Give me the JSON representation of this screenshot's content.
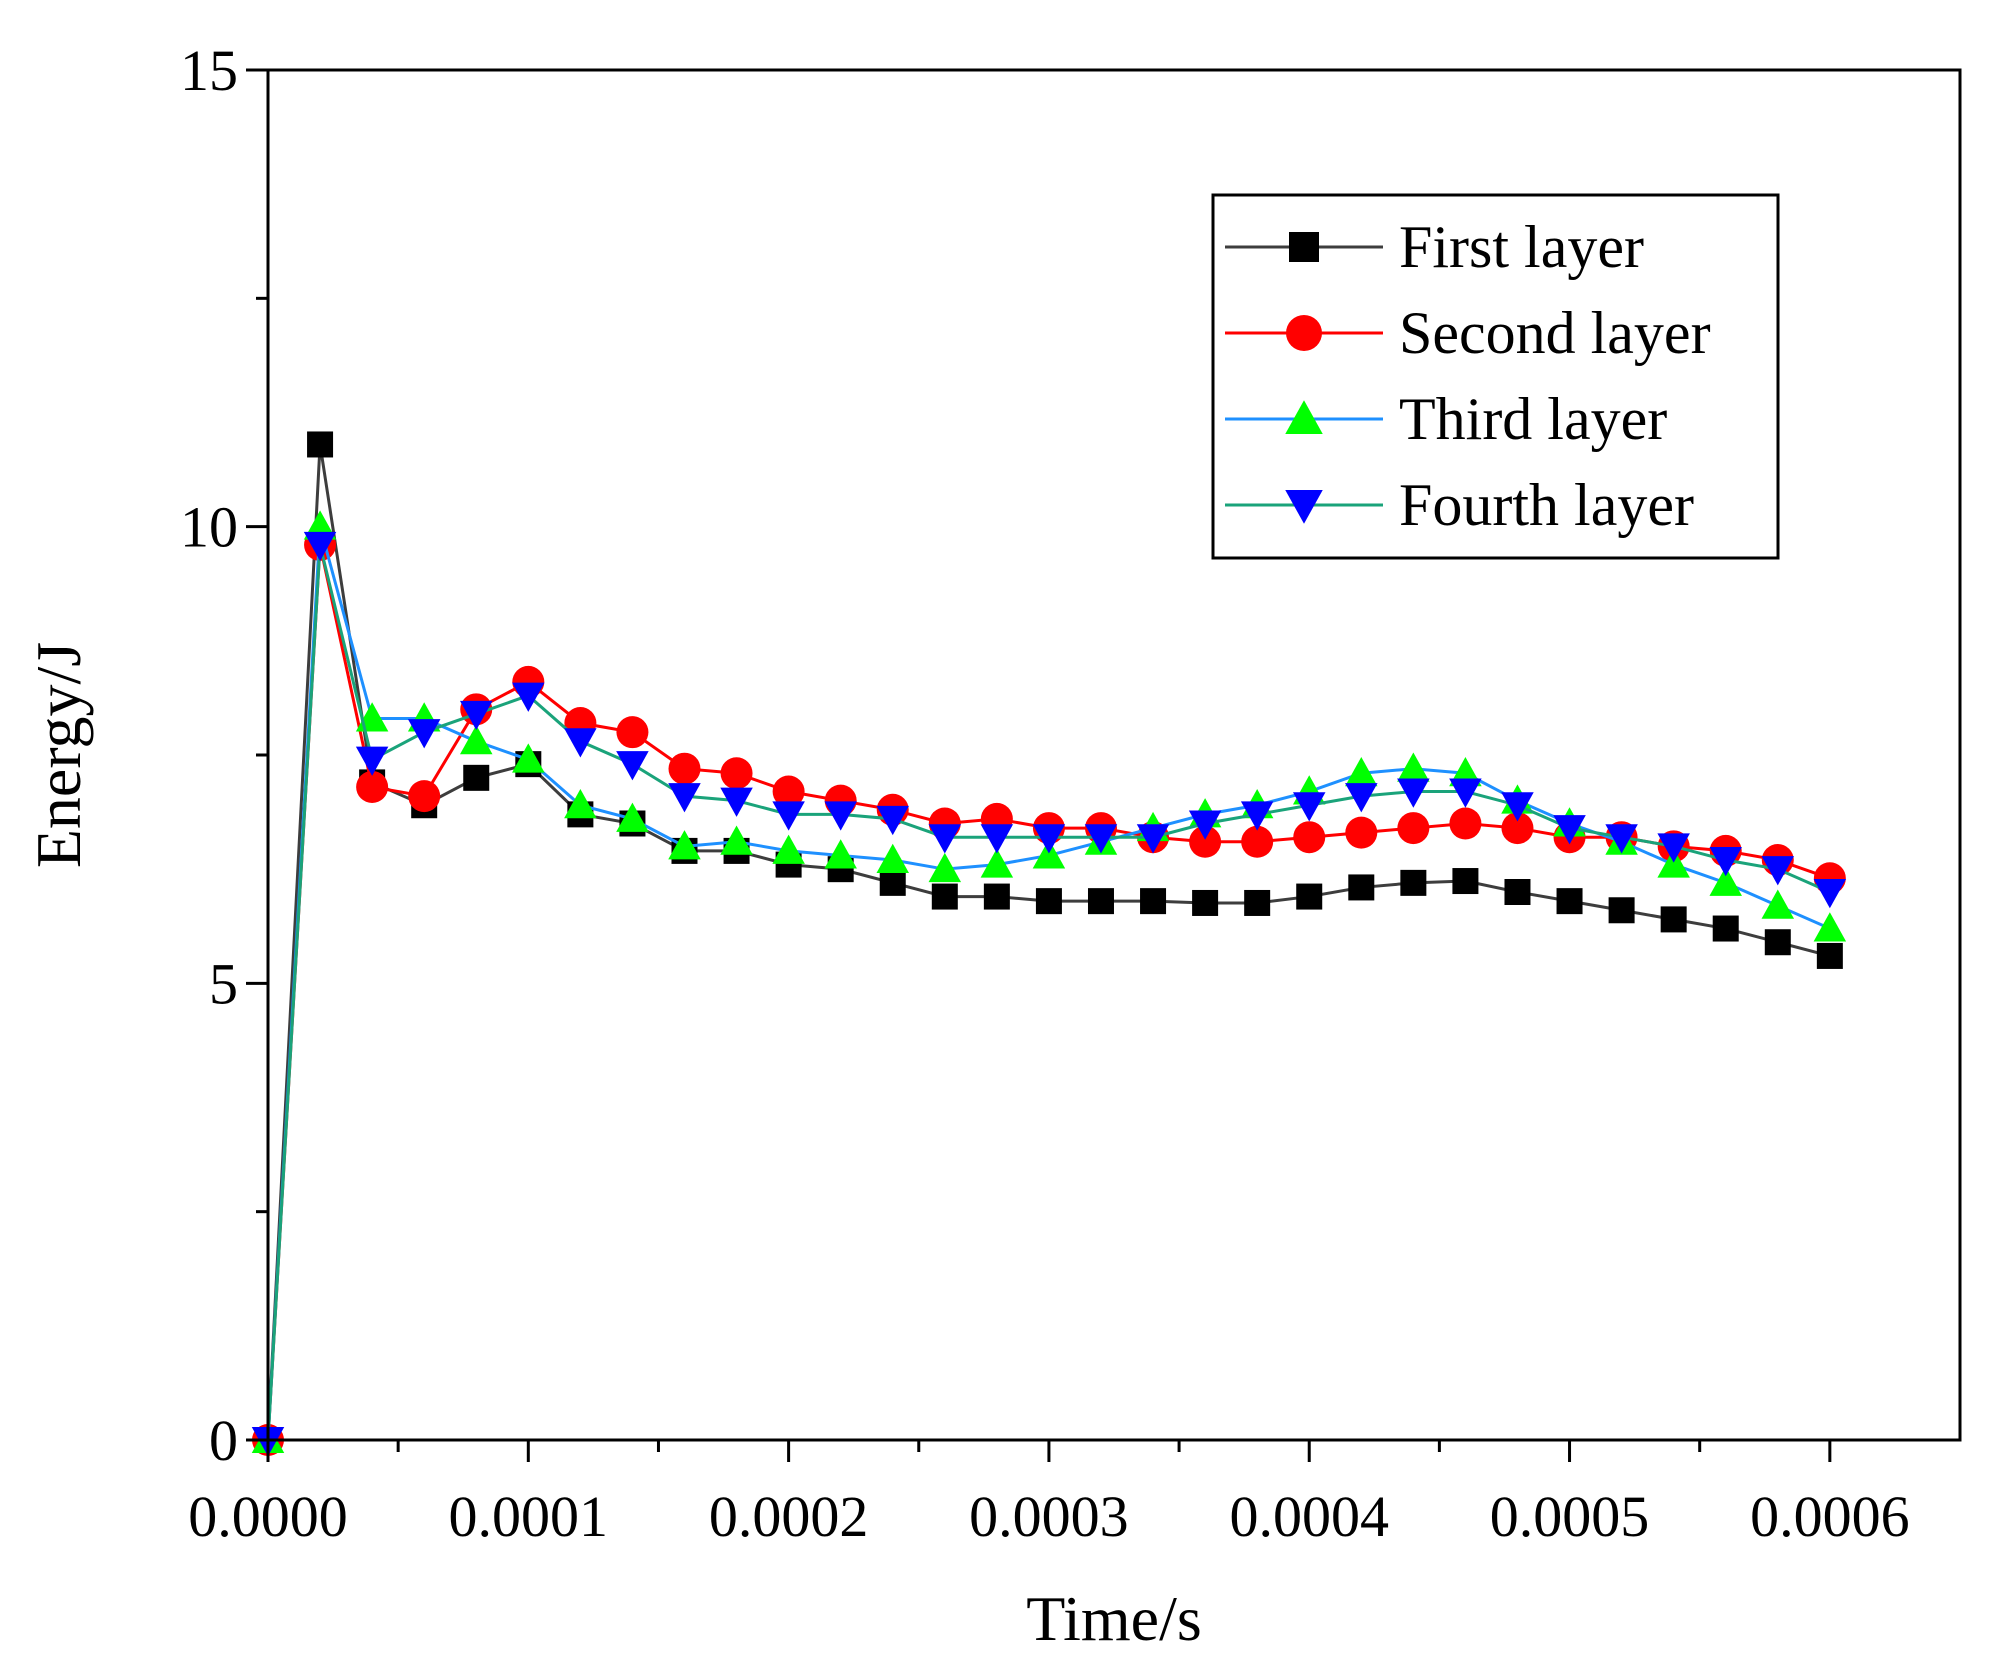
{
  "chart_data": {
    "type": "line",
    "title": "",
    "xlabel": "Time/s",
    "ylabel": "Energy/J",
    "xlim": [
      0,
      0.00065
    ],
    "ylim": [
      0,
      15
    ],
    "x_ticks": [
      "0.0000",
      "0.0001",
      "0.0002",
      "0.0003",
      "0.0004",
      "0.0005",
      "0.0006"
    ],
    "y_ticks": [
      "0",
      "5",
      "10",
      "15"
    ],
    "legend_position": "top-right",
    "grid": false,
    "x": [
      0,
      2e-05,
      4e-05,
      6e-05,
      8e-05,
      0.0001,
      0.00012,
      0.00014,
      0.00016,
      0.00018,
      0.0002,
      0.00022,
      0.00024,
      0.00026,
      0.00028,
      0.0003,
      0.00032,
      0.00034,
      0.00036,
      0.00038,
      0.0004,
      0.00042,
      0.00044,
      0.00046,
      0.00048,
      0.0005,
      0.00052,
      0.00054,
      0.00056,
      0.00058,
      0.0006
    ],
    "series": [
      {
        "name": "First layer",
        "color": "#3d3d3d",
        "marker": "square",
        "marker_color": "#000000",
        "values": [
          0,
          10.9,
          7.2,
          6.95,
          7.25,
          7.4,
          6.85,
          6.75,
          6.45,
          6.45,
          6.3,
          6.25,
          6.1,
          5.95,
          5.95,
          5.9,
          5.9,
          5.9,
          5.88,
          5.88,
          5.95,
          6.05,
          6.1,
          6.12,
          6.0,
          5.9,
          5.8,
          5.7,
          5.6,
          5.45,
          5.3
        ]
      },
      {
        "name": "Second layer",
        "color": "#ff0000",
        "marker": "circle",
        "marker_color": "#ff0000",
        "values": [
          0,
          9.8,
          7.15,
          7.05,
          8.0,
          8.3,
          7.85,
          7.75,
          7.35,
          7.3,
          7.1,
          7.0,
          6.9,
          6.75,
          6.8,
          6.7,
          6.7,
          6.6,
          6.55,
          6.55,
          6.6,
          6.65,
          6.7,
          6.75,
          6.7,
          6.6,
          6.6,
          6.5,
          6.45,
          6.35,
          6.15
        ]
      },
      {
        "name": "Third layer",
        "color": "#1e90ff",
        "marker": "triangle-up",
        "marker_color": "#00ff00",
        "values": [
          0,
          10.0,
          7.9,
          7.9,
          7.65,
          7.45,
          6.95,
          6.8,
          6.5,
          6.55,
          6.45,
          6.4,
          6.35,
          6.25,
          6.3,
          6.4,
          6.55,
          6.7,
          6.85,
          6.95,
          7.1,
          7.3,
          7.35,
          7.3,
          7.0,
          6.75,
          6.55,
          6.3,
          6.1,
          5.85,
          5.6
        ]
      },
      {
        "name": "Fourth layer",
        "color": "#1aa37a",
        "marker": "triangle-down",
        "marker_color": "#0000ff",
        "values": [
          0,
          9.8,
          7.45,
          7.75,
          7.95,
          8.15,
          7.65,
          7.4,
          7.05,
          7.0,
          6.85,
          6.85,
          6.8,
          6.6,
          6.6,
          6.6,
          6.6,
          6.6,
          6.75,
          6.85,
          6.95,
          7.05,
          7.1,
          7.1,
          6.95,
          6.7,
          6.6,
          6.5,
          6.35,
          6.25,
          6.0
        ]
      }
    ]
  }
}
